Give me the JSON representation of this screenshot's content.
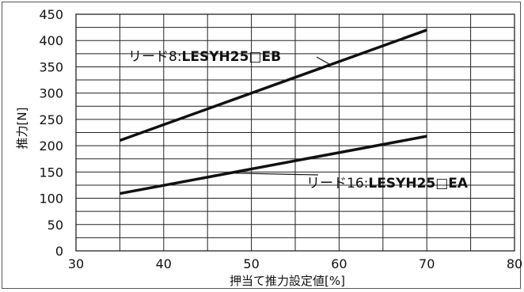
{
  "chart_data": {
    "type": "line",
    "title": "",
    "xlabel": "押当て推力設定値[%]",
    "ylabel": "推力[N]",
    "xlim": [
      30,
      80
    ],
    "ylim": [
      0,
      450
    ],
    "x_ticks": [
      "30",
      "40",
      "50",
      "60",
      "70",
      "80"
    ],
    "y_ticks": [
      "0",
      "50",
      "100",
      "150",
      "200",
      "250",
      "300",
      "350",
      "400",
      "450"
    ],
    "grid": true,
    "series": [
      {
        "name": "リード8:LESYH25□EB",
        "label_prefix": "リード8:",
        "label_model": "LESYH25□EB",
        "x": [
          35,
          70
        ],
        "y": [
          210,
          420
        ]
      },
      {
        "name": "リード16:LESYH25□EA",
        "label_prefix": "リード16:",
        "label_model": "LESYH25□EA",
        "x": [
          35,
          70
        ],
        "y": [
          109,
          218
        ]
      }
    ]
  }
}
